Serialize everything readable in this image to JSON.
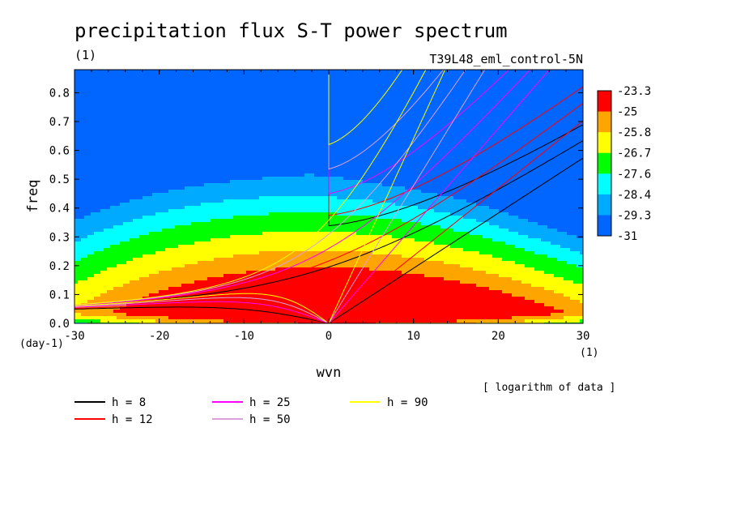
{
  "chart_data": {
    "type": "heatmap",
    "title": "precipitation flux S-T power spectrum",
    "unit_label": "(1)",
    "run_label": "T39L48_eml_control-5N",
    "xlabel": "wvn",
    "ylabel": "freq",
    "x_unit": "(1)",
    "y_unit": "(day-1)",
    "note": "[ logarithm of data ]",
    "xlim": [
      -30,
      30
    ],
    "ylim": [
      0,
      0.88
    ],
    "x_ticks": [
      "-30",
      "-20",
      "-10",
      "0",
      "10",
      "20",
      "30"
    ],
    "y_ticks": [
      "0.0",
      "0.1",
      "0.2",
      "0.3",
      "0.4",
      "0.5",
      "0.6",
      "0.7",
      "0.8"
    ],
    "colorbar": {
      "labels": [
        "-23.3",
        "-25",
        "-25.8",
        "-26.7",
        "-27.6",
        "-28.4",
        "-29.3",
        "-31"
      ],
      "colors": [
        "#ff0000",
        "#ffa500",
        "#ffff00",
        "#00ff00",
        "#00ffff",
        "#00aaff",
        "#0066ff"
      ]
    },
    "contour_levels": [
      -25,
      -25.8,
      -26.7,
      -27.6,
      -28.4,
      -29.3
    ],
    "dispersion_curves": [
      {
        "label": "h =  8",
        "equivalent_depth": 8,
        "color": "#000000"
      },
      {
        "label": "h = 12",
        "equivalent_depth": 12,
        "color": "#ff0000"
      },
      {
        "label": "h = 25",
        "equivalent_depth": 25,
        "color": "#ff00ff"
      },
      {
        "label": "h = 50",
        "equivalent_depth": 50,
        "color": "#dda0dd"
      },
      {
        "label": "h = 90",
        "equivalent_depth": 90,
        "color": "#ffff00"
      }
    ]
  }
}
